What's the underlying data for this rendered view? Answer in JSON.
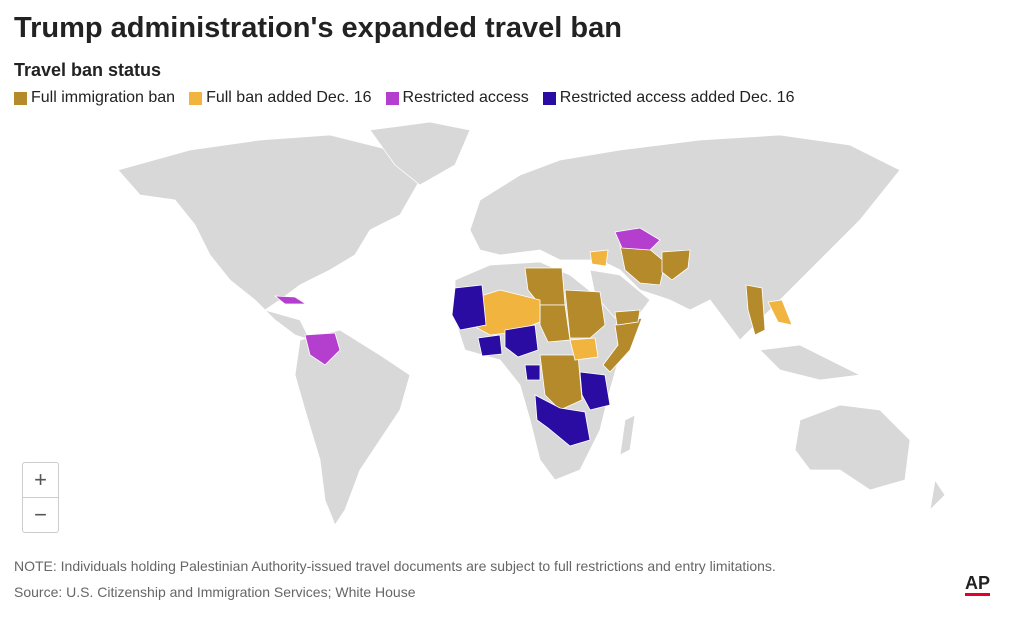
{
  "header": {
    "title": "Trump administration's expanded travel ban",
    "subtitle": "Travel ban status"
  },
  "legend": {
    "items": [
      {
        "label": "Full immigration ban",
        "color": "#b58a2a"
      },
      {
        "label": "Full ban added Dec. 16",
        "color": "#f0b43f"
      },
      {
        "label": "Restricted access",
        "color": "#b43fcf"
      },
      {
        "label": "Restricted access added Dec. 16",
        "color": "#2b0ca3"
      }
    ]
  },
  "controls": {
    "zoom_in": "+",
    "zoom_out": "−"
  },
  "footer": {
    "note": "NOTE: Individuals holding Palestinian Authority-issued travel documents are subject to full restrictions and entry limitations.",
    "source": "Source: U.S. Citizenship and Immigration Services; White House",
    "logo": "AP"
  }
}
